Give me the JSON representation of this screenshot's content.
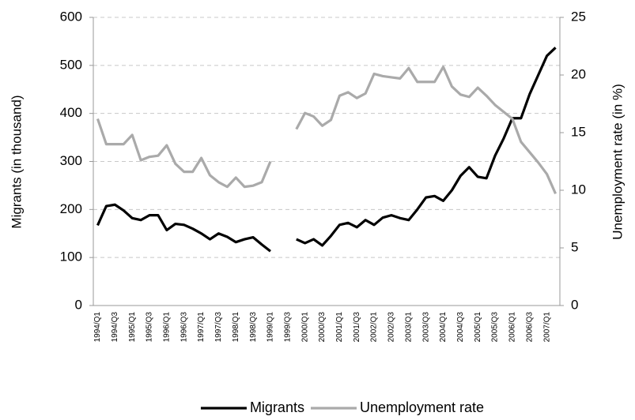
{
  "chart_data": {
    "type": "line",
    "categories": [
      "1994/Q1",
      null,
      "1994/Q3",
      null,
      "1995/Q1",
      null,
      "1995/Q3",
      null,
      "1996/Q1",
      null,
      "1996/Q3",
      null,
      "1997/Q1",
      null,
      "1997/Q3",
      null,
      "1998/Q1",
      null,
      "1998/Q3",
      null,
      "1999/Q1",
      null,
      "1999/Q3",
      null,
      "2000/Q1",
      null,
      "2000/Q3",
      null,
      "2001/Q1",
      null,
      "2001/Q3",
      null,
      "2002/Q1",
      null,
      "2002/Q3",
      null,
      "2003/Q1",
      null,
      "2003/Q3",
      null,
      "2004/Q1",
      null,
      "2004/Q3",
      null,
      "2005/Q1",
      null,
      "2005/Q3",
      null,
      "2006/Q1",
      null,
      "2006/Q3",
      null,
      "2007/Q1",
      null
    ],
    "series": [
      {
        "name": "Migrants",
        "color": "#000000",
        "axis": "y",
        "values": [
          167,
          207,
          210,
          198,
          182,
          178,
          188,
          188,
          157,
          170,
          168,
          160,
          150,
          138,
          150,
          143,
          132,
          138,
          142,
          127,
          113,
          null,
          null,
          138,
          130,
          138,
          125,
          145,
          168,
          172,
          163,
          178,
          168,
          183,
          188,
          182,
          178,
          200,
          225,
          228,
          218,
          240,
          270,
          288,
          268,
          265,
          312,
          348,
          390,
          390,
          440,
          480,
          520,
          537
        ]
      },
      {
        "name": "Unemployment rate",
        "color": "#aaaaaa",
        "axis": "y2",
        "values": [
          16.2,
          14.0,
          14.0,
          14.0,
          14.8,
          12.6,
          12.9,
          13.0,
          13.9,
          12.3,
          11.6,
          11.6,
          12.8,
          11.3,
          10.7,
          10.3,
          11.1,
          10.3,
          10.4,
          10.7,
          12.5,
          null,
          null,
          15.3,
          16.7,
          16.4,
          15.6,
          16.1,
          18.2,
          18.5,
          18.0,
          18.4,
          20.1,
          19.9,
          19.8,
          19.7,
          20.6,
          19.4,
          19.4,
          19.4,
          20.7,
          19.0,
          18.3,
          18.1,
          18.9,
          18.2,
          17.4,
          16.8,
          16.2,
          14.2,
          13.3,
          12.4,
          11.4,
          9.7
        ]
      }
    ],
    "ylabel": "Migrants (in thousand)",
    "y2label": "Unemployment rate (in %)",
    "ylim": [
      0,
      600
    ],
    "yticks": [
      0,
      100,
      200,
      300,
      400,
      500,
      600
    ],
    "y2lim": [
      0,
      25
    ],
    "y2ticks": [
      0,
      5,
      10,
      15,
      20,
      25
    ],
    "grid": true,
    "legend": "bottom"
  }
}
